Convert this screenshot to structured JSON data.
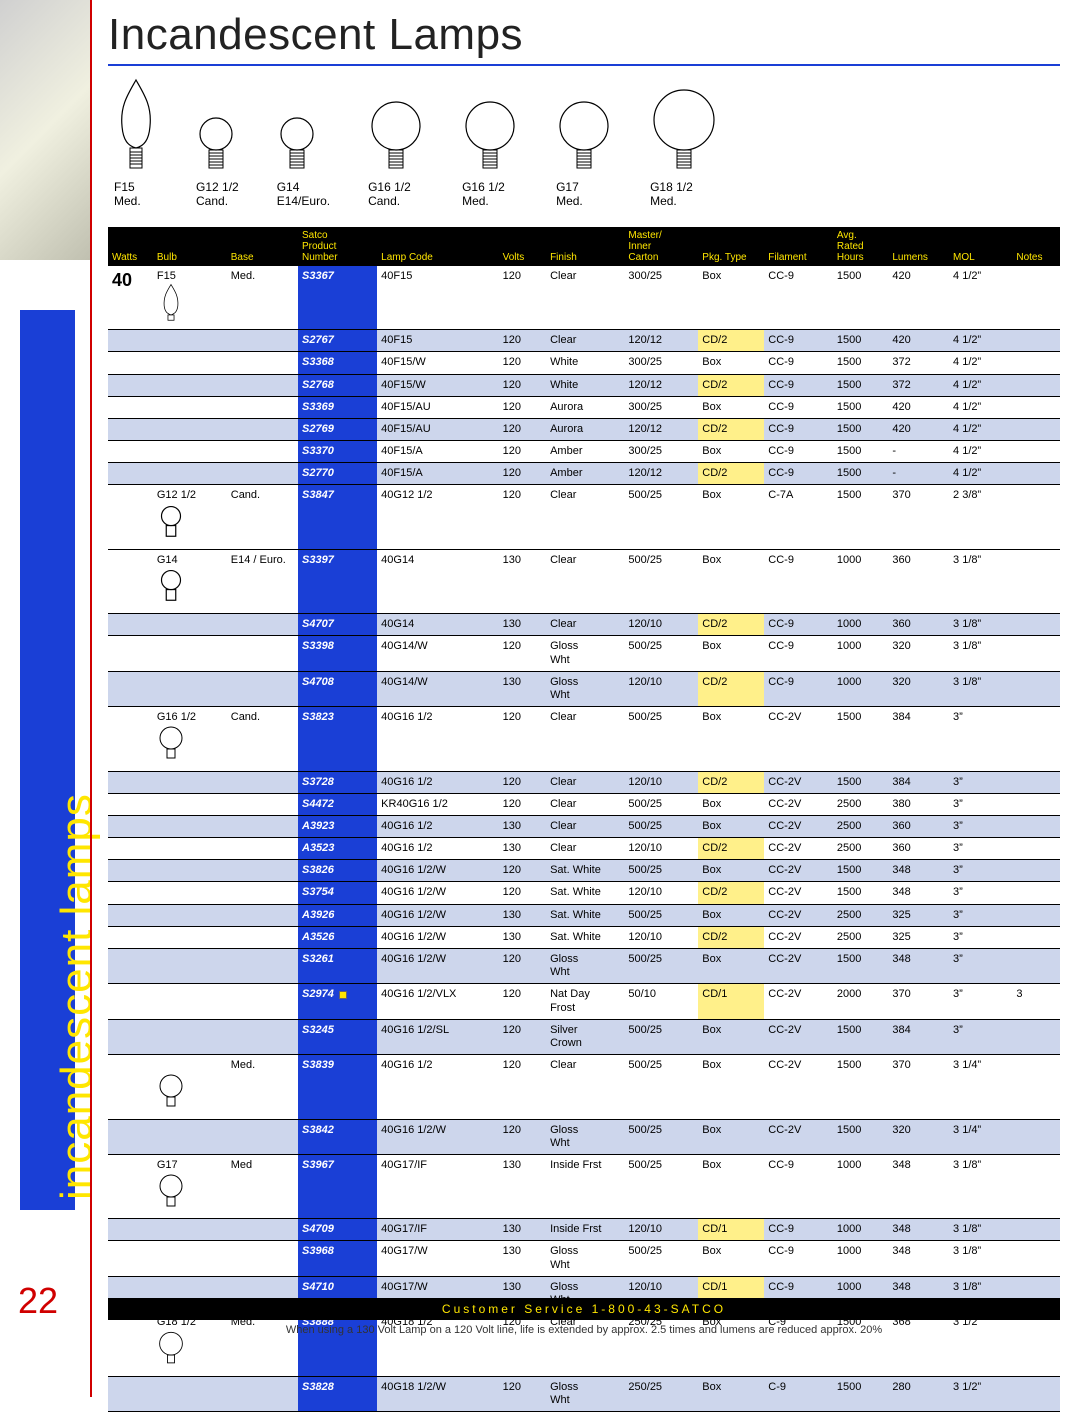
{
  "page": {
    "title": "Incandescent Lamps",
    "side_label": "incandescent lamps",
    "page_number": "22",
    "footer_bar": "Customer Service 1-800-43-SATCO",
    "footer_note": "When using a 130 Volt Lamp on a 120 Volt line, life is extended by approx. 2.5 times and lumens are reduced approx. 20%"
  },
  "colors": {
    "accent_blue": "#1a3fd6",
    "header_yellow": "#ffe600",
    "row_alt": "#cdd6ec",
    "pkg_highlight": "#fff08a",
    "red_rule": "#d00000"
  },
  "bulb_shapes": [
    {
      "code": "F15",
      "base": "Med."
    },
    {
      "code": "G12 1/2",
      "base": "Cand."
    },
    {
      "code": "G14",
      "base": "E14/Euro."
    },
    {
      "code": "G16 1/2",
      "base": "Cand."
    },
    {
      "code": "G16 1/2",
      "base": "Med."
    },
    {
      "code": "G17",
      "base": "Med."
    },
    {
      "code": "G18 1/2",
      "base": "Med."
    }
  ],
  "columns": [
    "Watts",
    "Bulb",
    "Base",
    "Satco\nProduct\nNumber",
    "Lamp Code",
    "Volts",
    "Finish",
    "Master/\nInner\nCarton",
    "Pkg. Type",
    "Filament",
    "Avg.\nRated\nHours",
    "Lumens",
    "MOL",
    "Notes"
  ],
  "rows": [
    {
      "watts": "40",
      "bulb": "F15",
      "base": "Med.",
      "bimg": "flame",
      "pn": "S3367",
      "lamp": "40F15",
      "volts": "120",
      "finish": "Clear",
      "carton": "300/25",
      "pkg": "Box",
      "fil": "CC-9",
      "hrs": "1500",
      "lum": "420",
      "mol": "4 1/2”",
      "notes": "",
      "alt": false,
      "hl": false
    },
    {
      "pn": "S2767",
      "lamp": "40F15",
      "volts": "120",
      "finish": "Clear",
      "carton": "120/12",
      "pkg": "CD/2",
      "fil": "CC-9",
      "hrs": "1500",
      "lum": "420",
      "mol": "4 1/2”",
      "notes": "",
      "alt": true,
      "hl": true
    },
    {
      "pn": "S3368",
      "lamp": "40F15/W",
      "volts": "120",
      "finish": "White",
      "carton": "300/25",
      "pkg": "Box",
      "fil": "CC-9",
      "hrs": "1500",
      "lum": "372",
      "mol": "4 1/2”",
      "notes": "",
      "alt": false,
      "hl": false
    },
    {
      "pn": "S2768",
      "lamp": "40F15/W",
      "volts": "120",
      "finish": "White",
      "carton": "120/12",
      "pkg": "CD/2",
      "fil": "CC-9",
      "hrs": "1500",
      "lum": "372",
      "mol": "4 1/2”",
      "notes": "",
      "alt": true,
      "hl": true
    },
    {
      "pn": "S3369",
      "lamp": "40F15/AU",
      "volts": "120",
      "finish": "Aurora",
      "carton": "300/25",
      "pkg": "Box",
      "fil": "CC-9",
      "hrs": "1500",
      "lum": "420",
      "mol": "4 1/2”",
      "notes": "",
      "alt": false,
      "hl": false
    },
    {
      "pn": "S2769",
      "lamp": "40F15/AU",
      "volts": "120",
      "finish": "Aurora",
      "carton": "120/12",
      "pkg": "CD/2",
      "fil": "CC-9",
      "hrs": "1500",
      "lum": "420",
      "mol": "4 1/2”",
      "notes": "",
      "alt": true,
      "hl": true
    },
    {
      "pn": "S3370",
      "lamp": "40F15/A",
      "volts": "120",
      "finish": "Amber",
      "carton": "300/25",
      "pkg": "Box",
      "fil": "CC-9",
      "hrs": "1500",
      "lum": "-",
      "mol": "4 1/2”",
      "notes": "",
      "alt": false,
      "hl": false
    },
    {
      "pn": "S2770",
      "lamp": "40F15/A",
      "volts": "120",
      "finish": "Amber",
      "carton": "120/12",
      "pkg": "CD/2",
      "fil": "CC-9",
      "hrs": "1500",
      "lum": "-",
      "mol": "4 1/2”",
      "notes": "",
      "alt": true,
      "hl": true
    },
    {
      "bulb": "G12 1/2",
      "base": "Cand.",
      "bimg": "globe-s",
      "pn": "S3847",
      "lamp": "40G12 1/2",
      "volts": "120",
      "finish": "Clear",
      "carton": "500/25",
      "pkg": "Box",
      "fil": "C-7A",
      "hrs": "1500",
      "lum": "370",
      "mol": "2 3/8”",
      "notes": "",
      "alt": false,
      "hl": false
    },
    {
      "bulb": "G14",
      "base": "E14 / Euro.",
      "bimg": "globe-s",
      "pn": "S3397",
      "lamp": "40G14",
      "volts": "130",
      "finish": "Clear",
      "carton": "500/25",
      "pkg": "Box",
      "fil": "CC-9",
      "hrs": "1000",
      "lum": "360",
      "mol": "3 1/8”",
      "notes": "",
      "alt": false,
      "hl": false
    },
    {
      "pn": "S4707",
      "lamp": "40G14",
      "volts": "130",
      "finish": "Clear",
      "carton": "120/10",
      "pkg": "CD/2",
      "fil": "CC-9",
      "hrs": "1000",
      "lum": "360",
      "mol": "3 1/8”",
      "notes": "",
      "alt": true,
      "hl": true
    },
    {
      "pn": "S3398",
      "lamp": "40G14/W",
      "volts": "120",
      "finish": "Gloss Wht",
      "carton": "500/25",
      "pkg": "Box",
      "fil": "CC-9",
      "hrs": "1000",
      "lum": "320",
      "mol": "3 1/8”",
      "notes": "",
      "alt": false,
      "hl": false
    },
    {
      "pn": "S4708",
      "lamp": "40G14/W",
      "volts": "130",
      "finish": "Gloss Wht",
      "carton": "120/10",
      "pkg": "CD/2",
      "fil": "CC-9",
      "hrs": "1000",
      "lum": "320",
      "mol": "3 1/8”",
      "notes": "",
      "alt": true,
      "hl": true
    },
    {
      "bulb": "G16 1/2",
      "base": "Cand.",
      "bimg": "globe-m",
      "pn": "S3823",
      "lamp": "40G16 1/2",
      "volts": "120",
      "finish": "Clear",
      "carton": "500/25",
      "pkg": "Box",
      "fil": "CC-2V",
      "hrs": "1500",
      "lum": "384",
      "mol": "3”",
      "notes": "",
      "alt": false,
      "hl": false
    },
    {
      "pn": "S3728",
      "lamp": "40G16 1/2",
      "volts": "120",
      "finish": "Clear",
      "carton": "120/10",
      "pkg": "CD/2",
      "fil": "CC-2V",
      "hrs": "1500",
      "lum": "384",
      "mol": "3”",
      "notes": "",
      "alt": true,
      "hl": true
    },
    {
      "pn": "S4472",
      "lamp": "KR40G16 1/2",
      "volts": "120",
      "finish": "Clear",
      "carton": "500/25",
      "pkg": "Box",
      "fil": "CC-2V",
      "hrs": "2500",
      "lum": "380",
      "mol": "3”",
      "notes": "",
      "alt": false,
      "hl": false
    },
    {
      "pn": "A3923",
      "lamp": "40G16 1/2",
      "volts": "130",
      "finish": "Clear",
      "carton": "500/25",
      "pkg": "Box",
      "fil": "CC-2V",
      "hrs": "2500",
      "lum": "360",
      "mol": "3”",
      "notes": "",
      "alt": true,
      "hl": false
    },
    {
      "pn": "A3523",
      "lamp": "40G16 1/2",
      "volts": "130",
      "finish": "Clear",
      "carton": "120/10",
      "pkg": "CD/2",
      "fil": "CC-2V",
      "hrs": "2500",
      "lum": "360",
      "mol": "3”",
      "notes": "",
      "alt": false,
      "hl": true
    },
    {
      "pn": "S3826",
      "lamp": "40G16 1/2/W",
      "volts": "120",
      "finish": "Sat. White",
      "carton": "500/25",
      "pkg": "Box",
      "fil": "CC-2V",
      "hrs": "1500",
      "lum": "348",
      "mol": "3”",
      "notes": "",
      "alt": true,
      "hl": false
    },
    {
      "pn": "S3754",
      "lamp": "40G16 1/2/W",
      "volts": "120",
      "finish": "Sat. White",
      "carton": "120/10",
      "pkg": "CD/2",
      "fil": "CC-2V",
      "hrs": "1500",
      "lum": "348",
      "mol": "3”",
      "notes": "",
      "alt": false,
      "hl": true
    },
    {
      "pn": "A3926",
      "lamp": "40G16 1/2/W",
      "volts": "130",
      "finish": "Sat. White",
      "carton": "500/25",
      "pkg": "Box",
      "fil": "CC-2V",
      "hrs": "2500",
      "lum": "325",
      "mol": "3”",
      "notes": "",
      "alt": true,
      "hl": false
    },
    {
      "pn": "A3526",
      "lamp": "40G16 1/2/W",
      "volts": "130",
      "finish": "Sat. White",
      "carton": "120/10",
      "pkg": "CD/2",
      "fil": "CC-2V",
      "hrs": "2500",
      "lum": "325",
      "mol": "3”",
      "notes": "",
      "alt": false,
      "hl": true
    },
    {
      "pn": "S3261",
      "lamp": "40G16 1/2/W",
      "volts": "120",
      "finish": "Gloss Wht",
      "carton": "500/25",
      "pkg": "Box",
      "fil": "CC-2V",
      "hrs": "1500",
      "lum": "348",
      "mol": "3”",
      "notes": "",
      "alt": true,
      "hl": false
    },
    {
      "pn": "S2974",
      "sq": true,
      "lamp": "40G16 1/2/VLX",
      "volts": "120",
      "finish": "Nat Day Frost",
      "carton": "50/10",
      "pkg": "CD/1",
      "fil": "CC-2V",
      "hrs": "2000",
      "lum": "370",
      "mol": "3”",
      "notes": "3",
      "alt": false,
      "hl": true
    },
    {
      "pn": "S3245",
      "lamp": "40G16 1/2/SL",
      "volts": "120",
      "finish": "Silver Crown",
      "carton": "500/25",
      "pkg": "Box",
      "fil": "CC-2V",
      "hrs": "1500",
      "lum": "384",
      "mol": "3”",
      "notes": "",
      "alt": true,
      "hl": false
    },
    {
      "bulb": "",
      "base": "Med.",
      "bimg": "globe-m",
      "pn": "S3839",
      "lamp": "40G16 1/2",
      "volts": "120",
      "finish": "Clear",
      "carton": "500/25",
      "pkg": "Box",
      "fil": "CC-2V",
      "hrs": "1500",
      "lum": "370",
      "mol": "3 1/4”",
      "notes": "",
      "alt": false,
      "hl": false
    },
    {
      "pn": "S3842",
      "lamp": "40G16 1/2/W",
      "volts": "120",
      "finish": "Gloss Wht",
      "carton": "500/25",
      "pkg": "Box",
      "fil": "CC-2V",
      "hrs": "1500",
      "lum": "320",
      "mol": "3 1/4”",
      "notes": "",
      "alt": true,
      "hl": false
    },
    {
      "bulb": "G17",
      "base": "Med",
      "bimg": "globe-m",
      "pn": "S3967",
      "lamp": "40G17/IF",
      "volts": "130",
      "finish": "Inside Frst",
      "carton": "500/25",
      "pkg": "Box",
      "fil": "CC-9",
      "hrs": "1000",
      "lum": "348",
      "mol": "3 1/8”",
      "notes": "",
      "alt": false,
      "hl": false
    },
    {
      "pn": "S4709",
      "lamp": "40G17/IF",
      "volts": "130",
      "finish": "Inside Frst",
      "carton": "120/10",
      "pkg": "CD/1",
      "fil": "CC-9",
      "hrs": "1000",
      "lum": "348",
      "mol": "3 1/8”",
      "notes": "",
      "alt": true,
      "hl": true
    },
    {
      "pn": "S3968",
      "lamp": "40G17/W",
      "volts": "130",
      "finish": "Gloss Wht",
      "carton": "500/25",
      "pkg": "Box",
      "fil": "CC-9",
      "hrs": "1000",
      "lum": "348",
      "mol": "3 1/8”",
      "notes": "",
      "alt": false,
      "hl": false
    },
    {
      "pn": "S4710",
      "lamp": "40G17/W",
      "volts": "130",
      "finish": "Gloss Wht",
      "carton": "120/10",
      "pkg": "CD/1",
      "fil": "CC-9",
      "hrs": "1000",
      "lum": "348",
      "mol": "3 1/8”",
      "notes": "",
      "alt": true,
      "hl": true
    },
    {
      "bulb": "G18 1/2",
      "base": "Med.",
      "bimg": "globe-l",
      "pn": "S3888",
      "lamp": "40G18 1/2",
      "volts": "120",
      "finish": "Clear",
      "carton": "250/25",
      "pkg": "Box",
      "fil": "C-9",
      "hrs": "1500",
      "lum": "368",
      "mol": "3 1/2”",
      "notes": "",
      "alt": false,
      "hl": false
    },
    {
      "pn": "S3828",
      "lamp": "40G18 1/2/W",
      "volts": "120",
      "finish": "Gloss Wht",
      "carton": "250/25",
      "pkg": "Box",
      "fil": "C-9",
      "hrs": "1500",
      "lum": "280",
      "mol": "3 1/2”",
      "notes": "",
      "alt": true,
      "hl": false
    }
  ]
}
